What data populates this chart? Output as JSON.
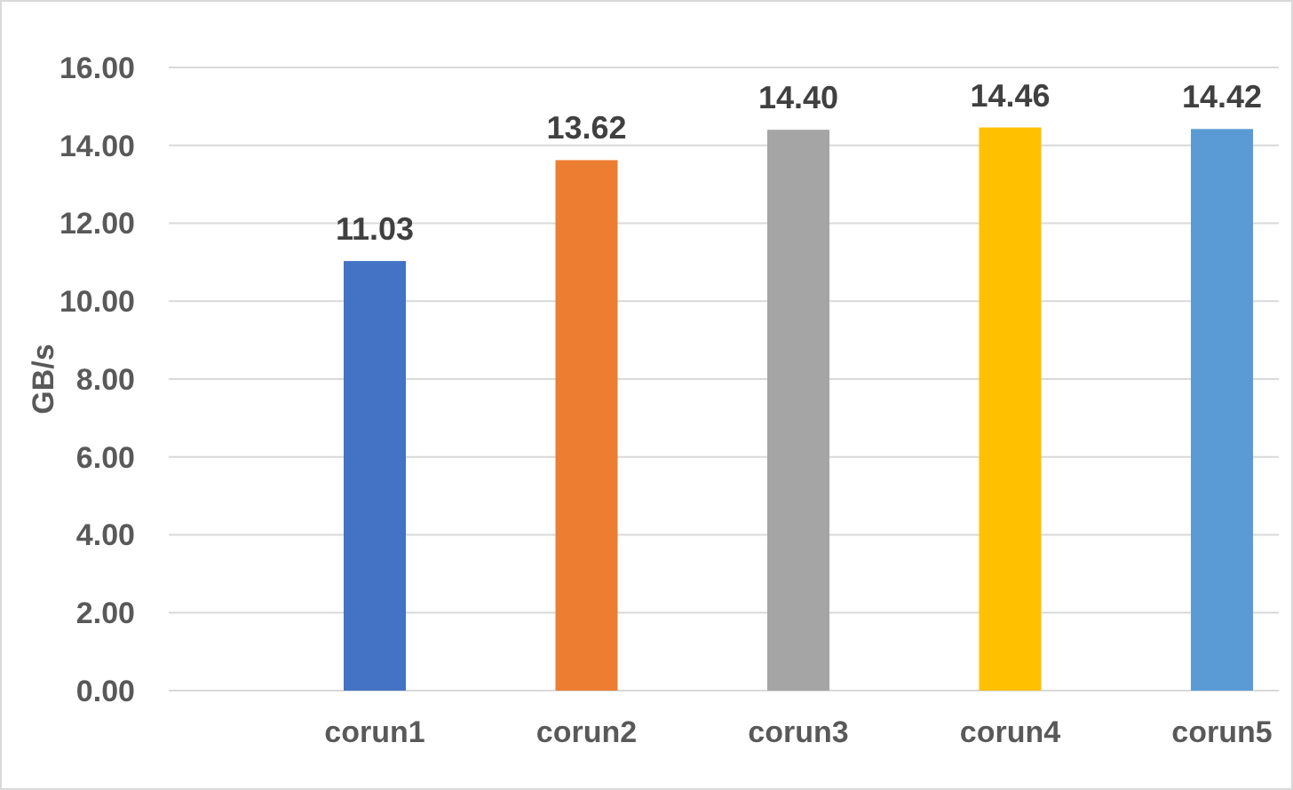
{
  "chart_data": {
    "type": "bar",
    "ylabel": "GB/s",
    "categories": [
      "corun1",
      "corun2",
      "corun3",
      "corun4",
      "corun5"
    ],
    "values": [
      11.03,
      13.62,
      14.4,
      14.46,
      14.42
    ],
    "colors": [
      "#4472c4",
      "#ed7d31",
      "#a5a5a5",
      "#ffc000",
      "#5b9bd5"
    ],
    "value_labels": [
      "11.03",
      "13.62",
      "14.40",
      "14.46",
      "14.42"
    ],
    "ylim": [
      0,
      16
    ],
    "yticks": [
      {
        "value": 0,
        "label": "0.00"
      },
      {
        "value": 2,
        "label": "2.00"
      },
      {
        "value": 4,
        "label": "4.00"
      },
      {
        "value": 6,
        "label": "6.00"
      },
      {
        "value": 8,
        "label": "8.00"
      },
      {
        "value": 10,
        "label": "10.00"
      },
      {
        "value": 12,
        "label": "12.00"
      },
      {
        "value": 14,
        "label": "14.00"
      },
      {
        "value": 16,
        "label": "16.00"
      }
    ],
    "grid": "y"
  }
}
